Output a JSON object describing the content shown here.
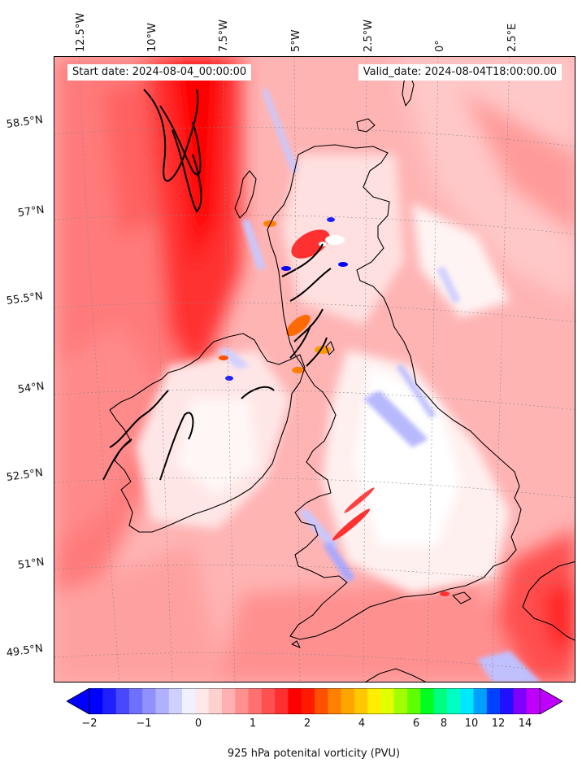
{
  "map": {
    "start_date": "Start date: 2024-08-04_00:00:00",
    "valid_date": "Valid_date: 2024-08-04T18:00:00.00",
    "longitude_labels": [
      "12.5°W",
      "10°W",
      "7.5°W",
      "5°W",
      "2.5°W",
      "0°",
      "2.5°E"
    ],
    "latitude_labels": [
      "58.5°N",
      "57°N",
      "55.5°N",
      "54°N",
      "52.5°N",
      "51°N",
      "49.5°N"
    ],
    "field": "925 hPa potential vorticity",
    "coastline_color": "#000000",
    "gridlines": "dotted"
  },
  "colorbar": {
    "label": "925 hPa potenital vorticity (PVU)",
    "tick_labels": [
      "−2",
      "−1",
      "0",
      "1",
      "2",
      "4",
      "6",
      "8",
      "10",
      "12",
      "14"
    ],
    "extend": "both",
    "colors": [
      "#0000ff",
      "#2020ff",
      "#4848ff",
      "#7070ff",
      "#9090ff",
      "#b0b0ff",
      "#d0d0ff",
      "#f0f0ff",
      "#ffe8e8",
      "#ffd0d0",
      "#ffb0b0",
      "#ff9090",
      "#ff7070",
      "#ff5050",
      "#ff3030",
      "#ff0000",
      "#ff1a00",
      "#ff5000",
      "#ff8000",
      "#ffa500",
      "#ffc800",
      "#ffee00",
      "#e0ff00",
      "#a0ff00",
      "#60ff00",
      "#00ff20",
      "#00ff80",
      "#00ffc0",
      "#00e8ff",
      "#00a0ff",
      "#0040ff",
      "#2010ff",
      "#8000ff",
      "#c000ff"
    ]
  }
}
